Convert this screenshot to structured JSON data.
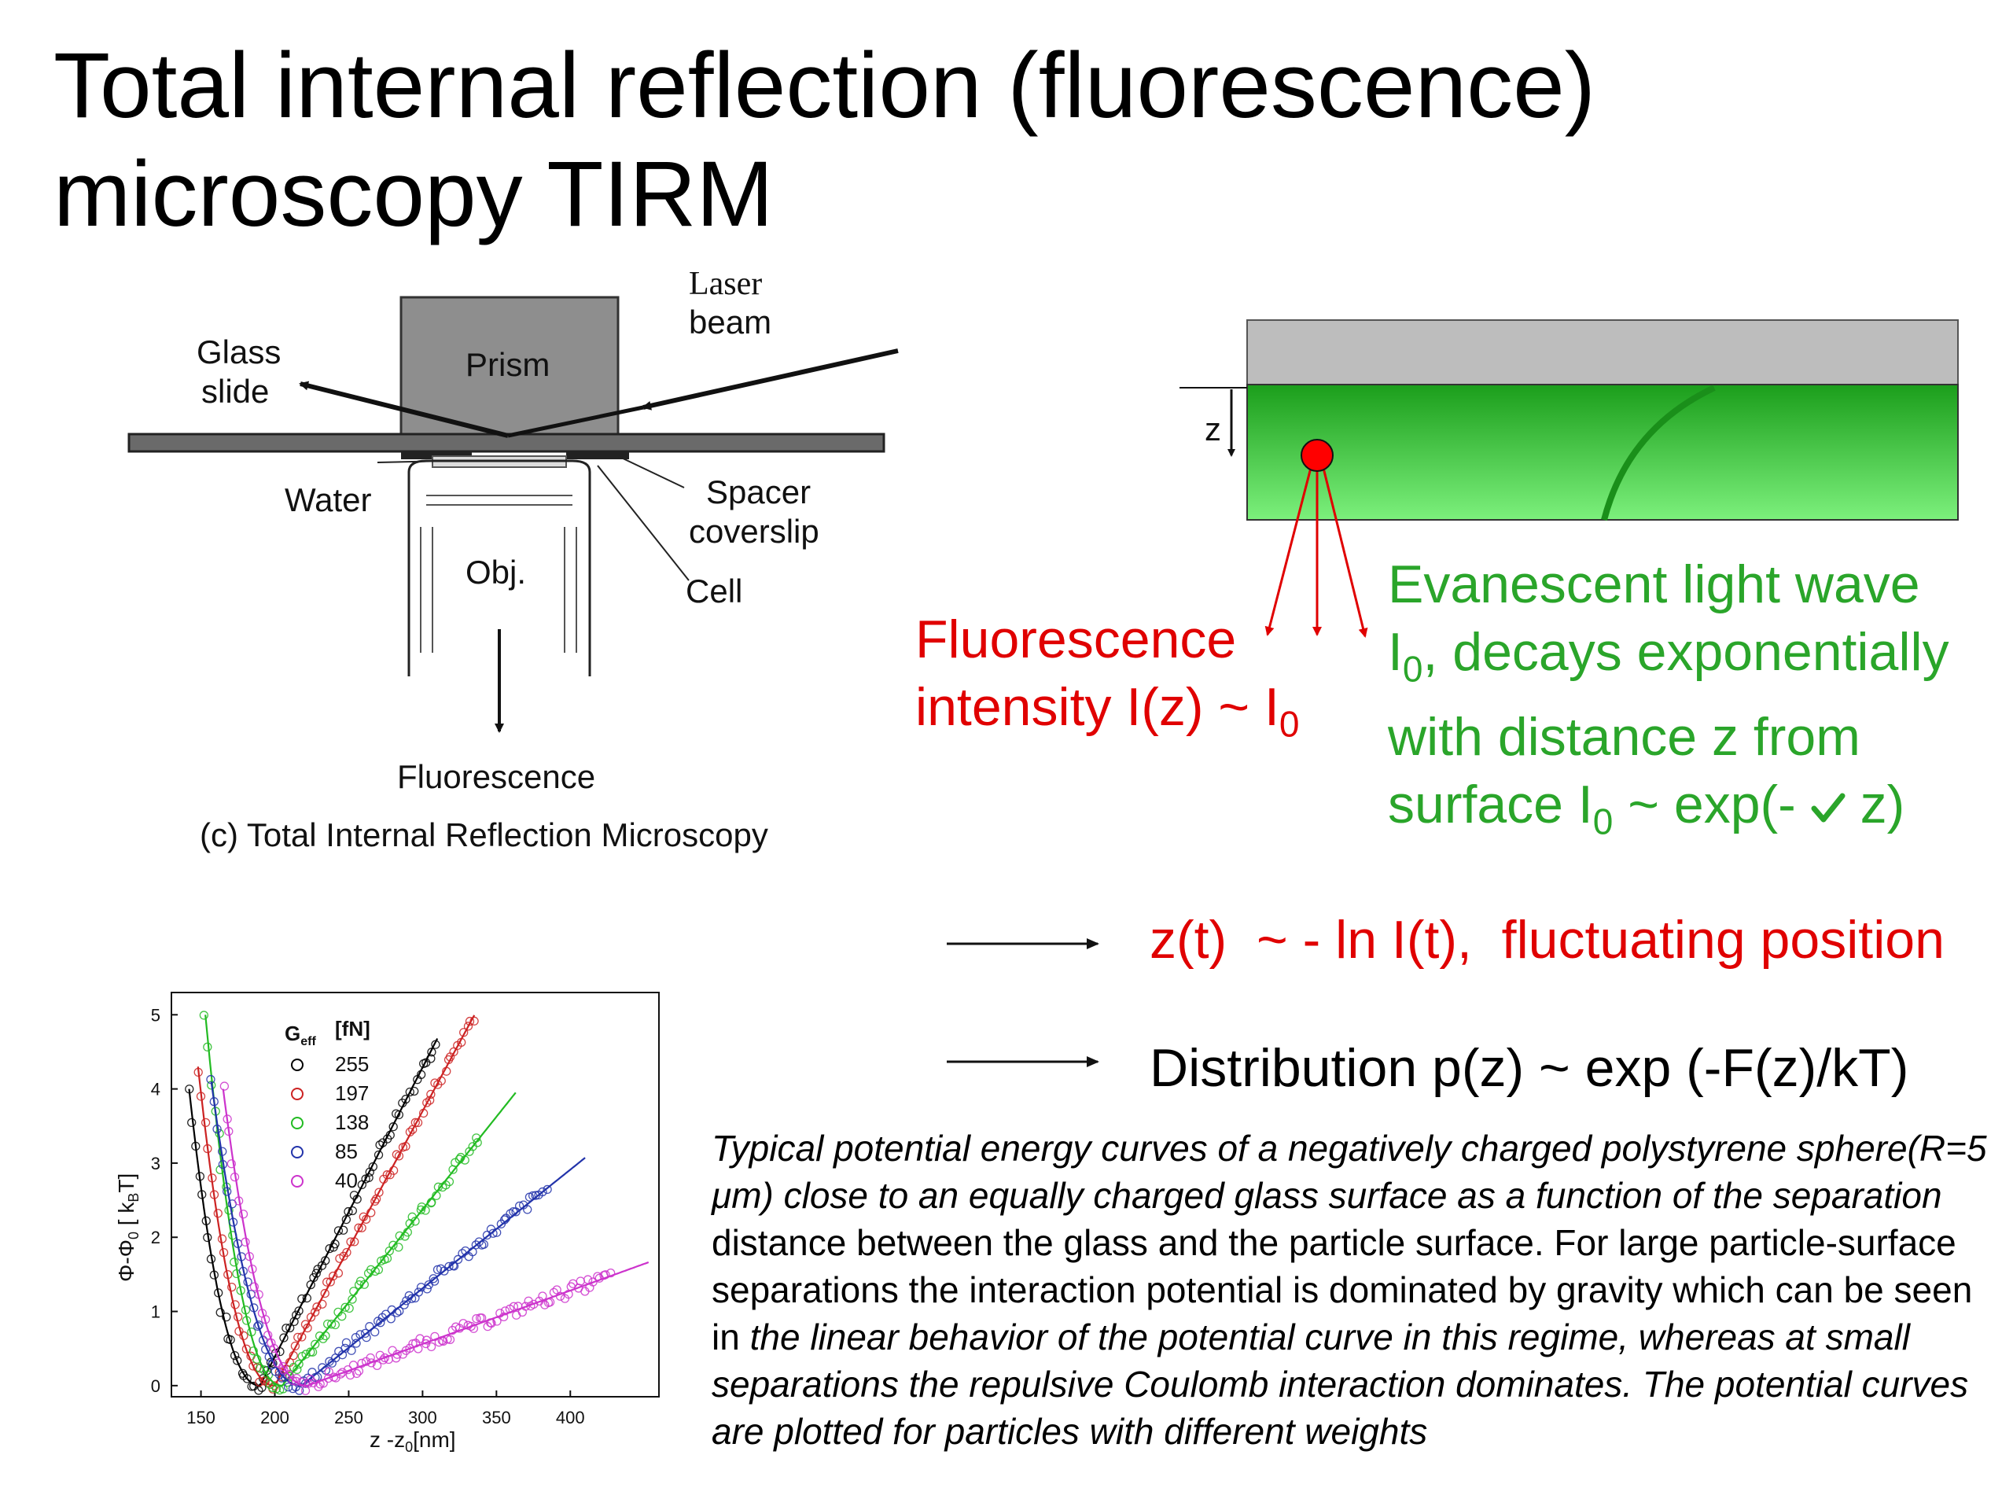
{
  "slide": {
    "title_line1": "Total internal reflection (fluorescence)",
    "title_line2": "microscopy TIRM"
  },
  "diagram_left": {
    "labels": {
      "laser_beam_1": "Laser",
      "laser_beam_2": "beam",
      "glass_slide_1": "Glass",
      "glass_slide_2": "slide",
      "prism": "Prism",
      "water": "Water",
      "spacer_1": "Spacer",
      "spacer_2": "coverslip",
      "cell": "Cell",
      "obj": "Obj.",
      "fluorescence": "Fluorescence",
      "caption": "(c) Total Internal Reflection Microscopy"
    }
  },
  "diagram_right": {
    "z_label": "z",
    "fluor_line1": "Fluorescence",
    "fluor_line2_pre": "intensity I(z) ~ I",
    "fluor_line2_sub": "0",
    "evan_line1": "Evanescent light wave",
    "evan_line2_pre": "I",
    "evan_line2_sub": "0",
    "evan_line2_post": ", decays exponentially",
    "evan_line3": "with distance z from",
    "evan_line4_pre": "surface I",
    "evan_line4_sub": "0",
    "evan_line4_post": " ~ exp(- ",
    "evan_line4_end": " z)",
    "colors": {
      "glass": "#bdbdbd",
      "water_top": "#1b9e1b",
      "water_bottom": "#7cf07c",
      "particle": "#ff0000",
      "text_red": "#e00000",
      "text_green": "#2aa52a"
    }
  },
  "statements": {
    "position": "z(t)  ~ - ln I(t),  fluctuating position",
    "distribution": "Distribution p(z) ~ exp (-F(z)/kT)"
  },
  "caption": {
    "p1": "Typical potential energy curves of a negatively charged polystyrene sphere(R=5 μm) close to an equally charged glass surface as a function of the separation",
    "p2": " distance between the glass and the particle surface. For large particle-surface separations the interaction potential is dominated by gravity which can be seen in ",
    "p3": "the linear behavior of the potential curve in this regime, whereas at small separations the repulsive Coulomb interaction dominates. The potential curves are plotted for particles with different weights"
  },
  "chart_data": {
    "type": "scatter",
    "xlabel": "z -z",
    "xlabel_sub": "0",
    "xlabel_unit": "[nm]",
    "ylabel": "Φ-Φ",
    "ylabel_sub": "0",
    "ylabel_unit": "  [ k",
    "ylabel_unit_sub": "B",
    "ylabel_unit_end": "T]",
    "xlim": [
      130,
      460
    ],
    "ylim": [
      -0.15,
      5.3
    ],
    "xticks": [
      150,
      200,
      250,
      300,
      350,
      400
    ],
    "yticks": [
      0,
      1,
      2,
      3,
      4,
      5
    ],
    "legend_title": "G",
    "legend_title_sub": "eff",
    "legend_unit": "[fN]",
    "legend_position": "top-left",
    "series": [
      {
        "name": "255",
        "color": "#000000",
        "min_x": 190,
        "start_x": 142,
        "end_x": 310,
        "y0": 4.0,
        "slope": 0.039
      },
      {
        "name": "197",
        "color": "#cc2222",
        "min_x": 200,
        "start_x": 148,
        "end_x": 335,
        "y0": 4.3,
        "slope": 0.037
      },
      {
        "name": "138",
        "color": "#22bb22",
        "min_x": 205,
        "start_x": 153,
        "end_x": 338,
        "y0": 5.0,
        "slope": 0.025
      },
      {
        "name": "85",
        "color": "#2233aa",
        "min_x": 218,
        "start_x": 157,
        "end_x": 385,
        "y0": 4.1,
        "slope": 0.016
      },
      {
        "name": "40",
        "color": "#cc33cc",
        "min_x": 222,
        "start_x": 165,
        "end_x": 428,
        "y0": 4.0,
        "slope": 0.0072
      }
    ]
  }
}
